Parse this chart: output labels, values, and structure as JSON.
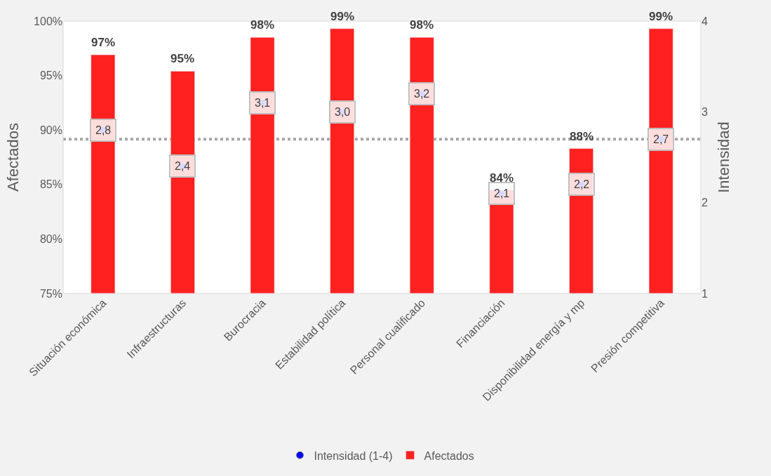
{
  "chart_data": {
    "type": "bar",
    "categories": [
      "Situación económica",
      "Infraestructuras",
      "Burocracia",
      "Estabilidad política",
      "Personal cualificado",
      "Financiación",
      "Disponibilidad energía y mp",
      "Presión competitiva"
    ],
    "ylabel": "Afectados",
    "y2label": "Intensidad",
    "ylim": [
      75,
      100
    ],
    "yticks": [
      {
        "value": 75,
        "label": "75%"
      },
      {
        "value": 80,
        "label": "80%"
      },
      {
        "value": 85,
        "label": "85%"
      },
      {
        "value": 90,
        "label": "90%"
      },
      {
        "value": 95,
        "label": "95%"
      },
      {
        "value": 100,
        "label": "100%"
      }
    ],
    "y2lim": [
      1,
      4
    ],
    "y2ticks": [
      1,
      2,
      3,
      4
    ],
    "series": [
      {
        "name": "Afectados",
        "color": "#ff2020",
        "values": [
          96.9,
          95.4,
          98.5,
          99.3,
          98.5,
          84.5,
          88.3,
          99.3
        ],
        "value_labels": [
          "97%",
          "95%",
          "98%",
          "99%",
          "98%",
          "84%",
          "88%",
          "99%"
        ]
      },
      {
        "name": "Intensidad (1-4)",
        "type": "scatter",
        "axis": "y2",
        "color": "#0000ff",
        "marker": "circle",
        "values": [
          2.8,
          2.4,
          3.1,
          3.0,
          3.2,
          2.1,
          2.2,
          2.7
        ],
        "value_labels": [
          "2,8",
          "2,4",
          "3,1",
          "3,0",
          "3,2",
          "2,1",
          "2,2",
          "2,7"
        ]
      }
    ],
    "ref_lines": [
      {
        "axis": "y2",
        "value": 2.7,
        "color": "#a6a6a6",
        "line_style": "dotted"
      }
    ],
    "grid": false,
    "legend": "bottom"
  }
}
